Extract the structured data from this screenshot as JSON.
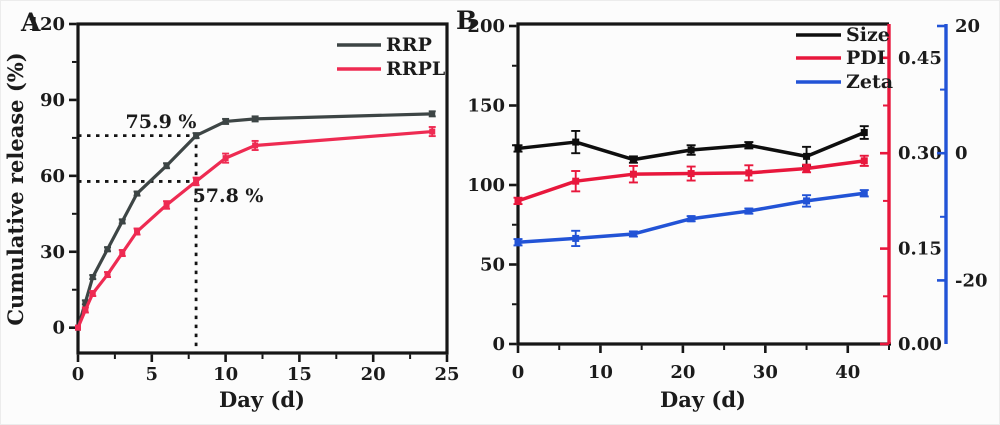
{
  "panels": [
    {
      "label": "A"
    },
    {
      "label": "B"
    }
  ],
  "chart_data": [
    {
      "id": "A",
      "type": "line",
      "title": "",
      "xlabel": "Day (d)",
      "ylabel": "Cumulative release (%)",
      "xlim": [
        0,
        25
      ],
      "ylim": [
        -10,
        120
      ],
      "xticks": [
        0,
        5,
        10,
        15,
        20,
        25
      ],
      "yticks": [
        0,
        30,
        60,
        90,
        120
      ],
      "x_minor_ticks": [
        2.5,
        7.5,
        12.5,
        17.5,
        22.5
      ],
      "y_minor_ticks": [
        15,
        45,
        75,
        105
      ],
      "grid": false,
      "axis_color": "#161616",
      "legend_position": "top-right",
      "x": [
        0,
        0.5,
        1,
        2,
        3,
        4,
        6,
        8,
        10,
        12,
        24
      ],
      "series": [
        {
          "name": "RRP",
          "color": "#3d4545",
          "values": [
            0,
            10,
            20,
            31,
            42,
            53,
            64,
            75.9,
            81.5,
            82.5,
            84.5
          ],
          "errors": [
            0,
            0.8,
            0.8,
            0.8,
            0.8,
            0.8,
            1,
            1,
            1,
            1,
            1
          ]
        },
        {
          "name": "RRPL",
          "color": "#ee2b52",
          "values": [
            0,
            7,
            13.5,
            21,
            29.5,
            38,
            48.5,
            57.8,
            67,
            72,
            77.5
          ],
          "errors": [
            0,
            1,
            1,
            1,
            1.2,
            1.2,
            1.5,
            1.5,
            1.8,
            1.8,
            1.8
          ]
        }
      ],
      "annotations": [
        {
          "text": "75.9 %",
          "color": "#1c1c1c"
        },
        {
          "text": "57.8 %",
          "color": "#e2303a"
        }
      ],
      "guide_lines": {
        "color": "#141414",
        "horizontal": [
          {
            "y": 75.9,
            "x_from": 0,
            "x_to": 8
          },
          {
            "y": 57.8,
            "x_from": 0,
            "x_to": 8
          }
        ],
        "vertical": [
          {
            "x": 8,
            "y_from": -10,
            "y_to": 75.9
          }
        ]
      }
    },
    {
      "id": "B",
      "type": "line",
      "title": "",
      "xlabel": "Day (d)",
      "xlim": [
        0,
        45
      ],
      "xticks": [
        0,
        10,
        20,
        30,
        40
      ],
      "x_minor_ticks": [
        5,
        15,
        25,
        35,
        45
      ],
      "grid": false,
      "legend_position": "top-right",
      "axes": {
        "left": {
          "color": "#161616",
          "range": [
            0,
            200
          ],
          "ticks": [
            0,
            50,
            100,
            150,
            200
          ],
          "minor_ticks": [
            25,
            75,
            125,
            175
          ]
        },
        "pdi": {
          "color": "#e8173c",
          "range": [
            0,
            0.5
          ],
          "ticks": [
            0,
            0.15,
            0.3,
            0.45
          ],
          "tick_labels": [
            "0.00",
            "0.15",
            "0.30",
            "0.45"
          ],
          "minor_ticks": [
            0.075,
            0.225,
            0.375
          ]
        },
        "zeta": {
          "color": "#2253d6",
          "range": [
            -30,
            20
          ],
          "ticks": [
            -20,
            0,
            20
          ],
          "minor_ticks": [
            -10,
            10
          ]
        }
      },
      "x": [
        0,
        7,
        14,
        21,
        28,
        35,
        42
      ],
      "series": [
        {
          "name": "Size",
          "axis": "left",
          "color": "#0e0e0e",
          "values": [
            123,
            127,
            116,
            122,
            125,
            118,
            133
          ],
          "errors": [
            2,
            7,
            2,
            3,
            2,
            6,
            4
          ]
        },
        {
          "name": "PDI",
          "axis": "pdi",
          "color": "#e8173c",
          "values": [
            0.225,
            0.256,
            0.267,
            0.268,
            0.269,
            0.276,
            0.288
          ],
          "errors": [
            0.005,
            0.016,
            0.013,
            0.011,
            0.012,
            0.006,
            0.008
          ]
        },
        {
          "name": "Zeta",
          "axis": "zeta",
          "color": "#2253d6",
          "values": [
            -14,
            -13.4,
            -12.7,
            -10.3,
            -9.1,
            -7.5,
            -6.3
          ],
          "errors": [
            0.5,
            1.2,
            0.4,
            0.4,
            0.4,
            0.9,
            0.5
          ]
        }
      ]
    }
  ]
}
